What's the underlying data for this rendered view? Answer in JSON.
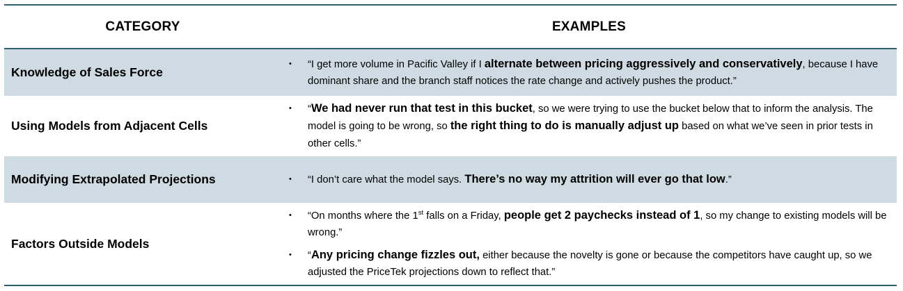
{
  "table": {
    "header": {
      "category": "CATEGORY",
      "examples": "EXAMPLES"
    },
    "rows": [
      {
        "category": "Knowledge of Sales Force",
        "shaded": true,
        "examples": [
          [
            {
              "t": "“I get more volume in Pacific Valley if I "
            },
            {
              "t": "alternate between pricing aggressively and conservatively",
              "b": true
            },
            {
              "t": ", because I have dominant share and the branch staff notices the rate change and actively pushes the product.”"
            }
          ]
        ]
      },
      {
        "category": "Using Models from Adjacent Cells",
        "shaded": false,
        "examples": [
          [
            {
              "t": "“"
            },
            {
              "t": "We had never run that test in this bucket",
              "b": true
            },
            {
              "t": ", so we were trying to use the bucket below that to inform the analysis. The model is going to be wrong, so "
            },
            {
              "t": "the right thing to do is manually adjust up",
              "b": true
            },
            {
              "t": " based on what we’ve seen in prior tests in other cells.”"
            }
          ]
        ]
      },
      {
        "category": "Modifying Extrapolated Projections",
        "shaded": true,
        "examples": [
          [
            {
              "t": "“I don’t care what the model says. "
            },
            {
              "t": "There’s no way my attrition will ever go that low",
              "b": true
            },
            {
              "t": ".”"
            }
          ]
        ]
      },
      {
        "category": "Factors Outside Models",
        "shaded": false,
        "examples": [
          [
            {
              "t": "“On months where the 1"
            },
            {
              "t": "st",
              "sup": true
            },
            {
              "t": " falls on a Friday, "
            },
            {
              "t": "people get 2 paychecks instead of 1",
              "b": true
            },
            {
              "t": ", so my change to existing models will be wrong.”"
            }
          ],
          [
            {
              "t": "“"
            },
            {
              "t": "Any pricing change fizzles out,",
              "b": true
            },
            {
              "t": " either because the novelty is gone or because the competitors have caught up, so we adjusted the PriceTek projections down to reflect that.”"
            }
          ]
        ]
      }
    ]
  }
}
